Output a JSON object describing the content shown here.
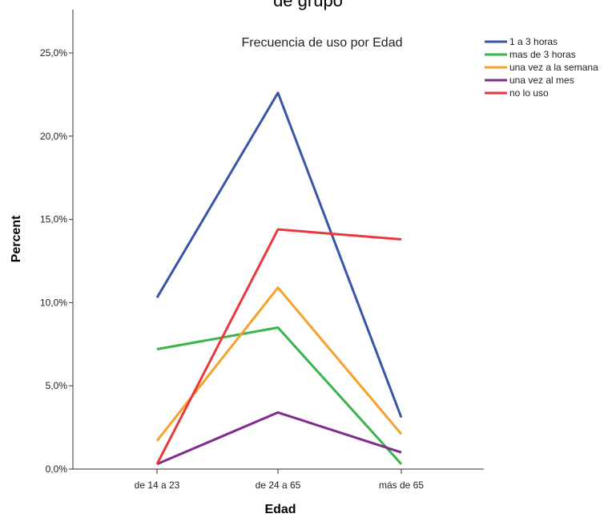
{
  "header": {
    "cut_text": "de grupo"
  },
  "chart_data": {
    "type": "line",
    "title": "Frecuencia de uso por Edad",
    "xlabel": "Edad",
    "ylabel": "Percent",
    "categories": [
      "de 14 a 23",
      "de 24 a 65",
      "más de 65"
    ],
    "ylim": [
      0,
      27
    ],
    "yticks": [
      0,
      5,
      10,
      15,
      20,
      25
    ],
    "ytick_labels": [
      "0,0%",
      "5,0%",
      "10,0%",
      "15,0%",
      "20,0%",
      "25,0%"
    ],
    "grid": false,
    "legend_position": "top-right",
    "series": [
      {
        "name": "1 a 3 horas",
        "color": "#3a55a8",
        "values": [
          10.3,
          22.6,
          3.1
        ]
      },
      {
        "name": "mas de 3 horas",
        "color": "#3ab54a",
        "values": [
          7.2,
          8.5,
          0.3
        ]
      },
      {
        "name": "una vez a la semana",
        "color": "#f7a12d",
        "values": [
          1.7,
          10.9,
          2.1
        ]
      },
      {
        "name": "una vez al mes",
        "color": "#7f2c8c",
        "values": [
          0.3,
          3.4,
          1.0
        ]
      },
      {
        "name": "no lo uso",
        "color": "#e8393e",
        "values": [
          0.3,
          14.4,
          13.8
        ]
      }
    ]
  }
}
